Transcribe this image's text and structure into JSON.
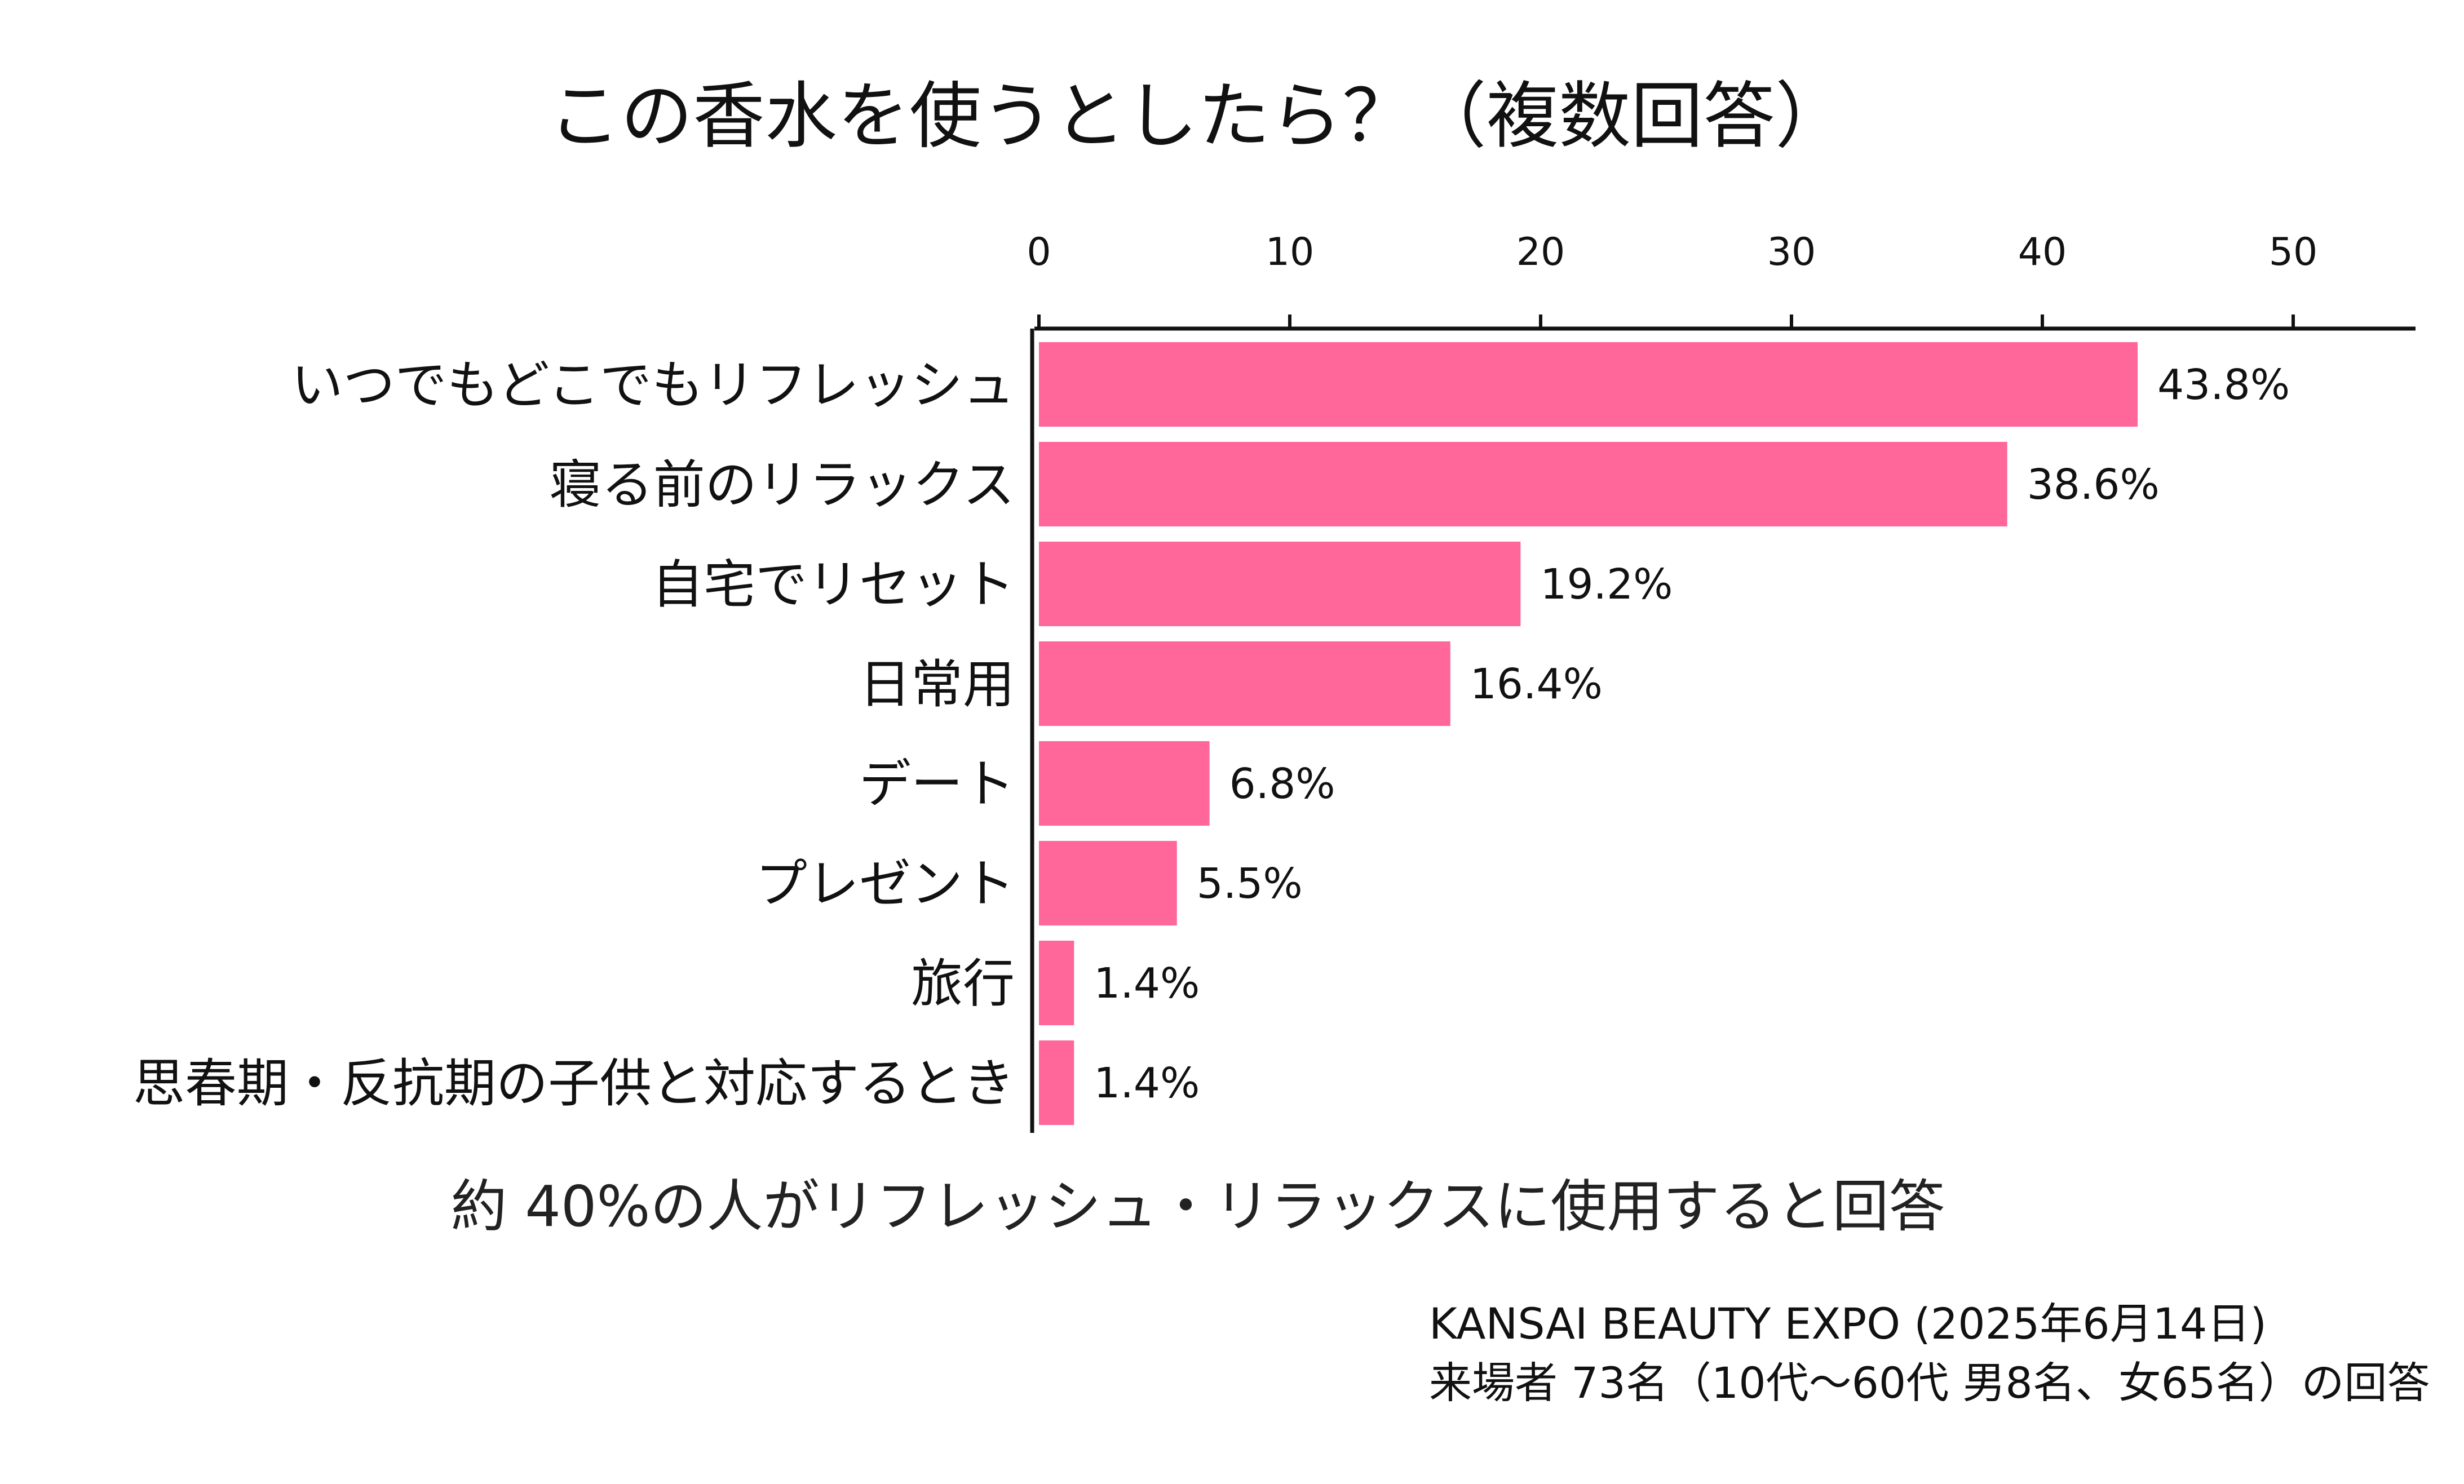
{
  "chart_data": {
    "type": "bar",
    "orientation": "horizontal",
    "title": "この香水を使うとしたら？（複数回答）",
    "categories": [
      "いつでもどこでもリフレッシュ",
      "寝る前のリラックス",
      "自宅でリセット",
      "日常用",
      "デート",
      "プレゼント",
      "旅行",
      "思春期・反抗期の子供と対応するとき"
    ],
    "values": [
      43.8,
      38.6,
      19.2,
      16.4,
      6.8,
      5.5,
      1.4,
      1.4
    ],
    "value_labels": [
      "43.8%",
      "38.6%",
      "19.2%",
      "16.4%",
      "6.8%",
      "5.5%",
      "1.4%",
      "1.4%"
    ],
    "xlim": [
      0,
      55
    ],
    "ticks": [
      0,
      10,
      20,
      30,
      40,
      50
    ],
    "tick_labels": [
      "0",
      "10",
      "20",
      "30",
      "40",
      "50"
    ],
    "axis_position": "top",
    "grid": false,
    "bar_color": "#ff6699",
    "summary": "約 40%の人がリフレッシュ・リラックスに使用すると回答",
    "source_lines": [
      "KANSAI BEAUTY EXPO (2025年6月14日)",
      "来場者 73名（10代〜60代 男8名、女65名）の回答"
    ]
  }
}
